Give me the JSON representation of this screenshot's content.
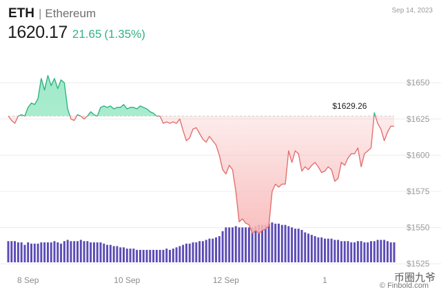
{
  "header": {
    "ticker": "ETH",
    "separator": "|",
    "name": "Ethereum",
    "date": "Sep 14, 2023",
    "price": "1620.17",
    "change": "21.65",
    "change_pct": "(1.35%)"
  },
  "watermark": {
    "source": "© Finbold.com",
    "overlay": "币圈九爷"
  },
  "colors": {
    "up": "#2fb380",
    "up_fill": "#9be8c6",
    "down": "#e36f6f",
    "down_fill": "#f8b8b8",
    "volume": "#5b4bb5",
    "grid": "#ececec",
    "baseline": "#cccccc"
  },
  "chart_data": {
    "type": "line",
    "title": "",
    "xlabel": "",
    "ylabel": "",
    "baseline": 1627.0,
    "ylim": [
      1517,
      1662
    ],
    "yticks": [
      1525,
      1550,
      1575,
      1600,
      1625,
      1650
    ],
    "ytick_labels": [
      "$1525",
      "$1550",
      "$1575",
      "$1600",
      "$1625",
      "$1650"
    ],
    "x_tick_labels": [
      "8 Sep",
      "10 Sep",
      "12 Sep",
      "1"
    ],
    "x_tick_index": [
      6,
      36,
      66,
      96
    ],
    "annotation": {
      "label": "$1629.26",
      "value": 1629.26,
      "index": 101
    },
    "series": [
      {
        "values": [
          1627,
          1624,
          1622,
          1627,
          1628,
          1627,
          1633,
          1636,
          1635,
          1639,
          1653,
          1645,
          1655,
          1648,
          1653,
          1646,
          1652,
          1650,
          1632,
          1625,
          1624,
          1628,
          1627,
          1625,
          1627,
          1630,
          1628,
          1627,
          1633,
          1634,
          1633,
          1634,
          1632,
          1633,
          1633,
          1635,
          1632,
          1633,
          1633,
          1632,
          1634,
          1633,
          1632,
          1630,
          1629,
          1627,
          1627,
          1622,
          1623,
          1622,
          1623,
          1622,
          1625,
          1617,
          1610,
          1612,
          1618,
          1619,
          1615,
          1611,
          1609,
          1613,
          1610,
          1607,
          1600,
          1590,
          1587,
          1593,
          1590,
          1575,
          1554,
          1556,
          1553,
          1552,
          1546,
          1548,
          1546,
          1548,
          1549,
          1551,
          1575,
          1580,
          1578,
          1580,
          1580,
          1603,
          1595,
          1603,
          1601,
          1589,
          1592,
          1590,
          1593,
          1595,
          1592,
          1588,
          1589,
          1592,
          1590,
          1582,
          1584,
          1595,
          1593,
          1598,
          1601,
          1601,
          1605,
          1592,
          1601,
          1603,
          1605,
          1629.26,
          1622,
          1618,
          1610,
          1616,
          1620,
          1620
        ]
      }
    ],
    "volume": [
      17,
      17,
      17,
      16,
      16,
      14,
      16,
      15,
      15,
      15,
      16,
      16,
      16,
      16,
      17,
      16,
      15,
      17,
      18,
      17,
      17,
      17,
      18,
      17,
      17,
      16,
      16,
      16,
      16,
      15,
      14,
      14,
      13,
      13,
      12,
      12,
      11,
      11,
      11,
      10,
      10,
      10,
      10,
      10,
      10,
      10,
      10,
      10,
      11,
      10,
      11,
      12,
      13,
      14,
      15,
      15,
      16,
      16,
      17,
      17,
      18,
      19,
      19,
      20,
      21,
      25,
      28,
      28,
      28,
      29,
      28,
      28,
      28,
      28,
      28,
      29,
      30,
      30,
      30,
      31,
      32,
      31,
      31,
      30,
      30,
      29,
      28,
      27,
      27,
      26,
      24,
      23,
      22,
      21,
      20,
      20,
      19,
      19,
      19,
      18,
      18,
      17,
      17,
      17,
      16,
      16,
      17,
      17,
      16,
      16,
      17,
      17,
      18,
      18,
      18,
      17,
      16,
      16
    ]
  }
}
